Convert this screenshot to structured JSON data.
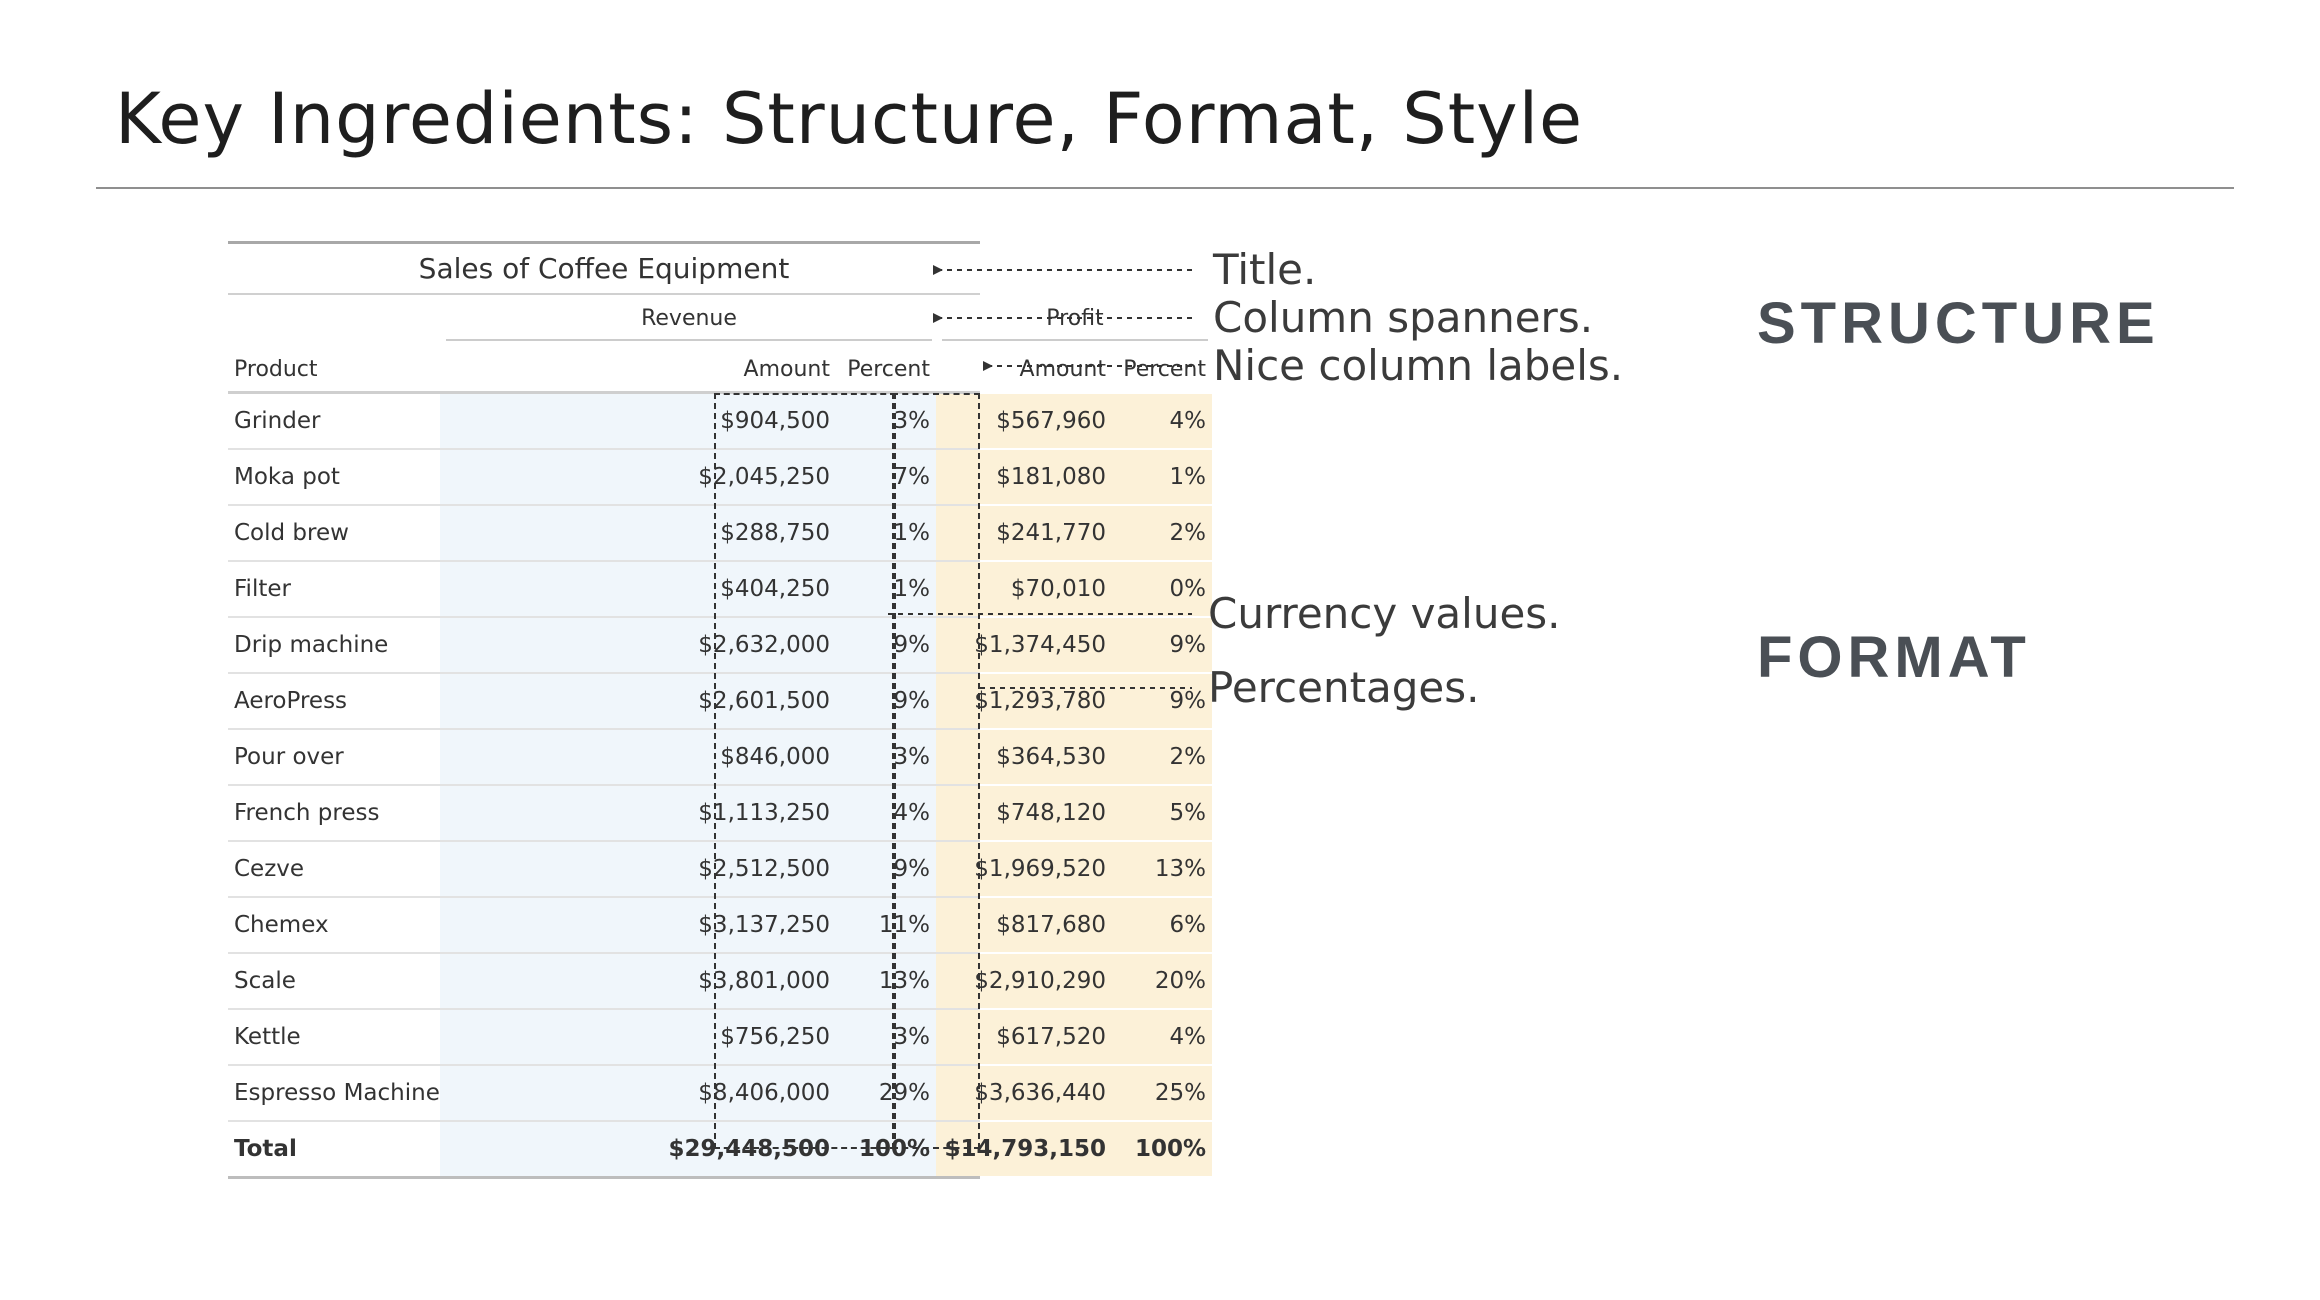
{
  "slide": {
    "title": "Key Ingredients: Structure, Format, Style"
  },
  "table": {
    "title": "Sales of Coffee Equipment",
    "spanners": {
      "revenue": "Revenue",
      "profit": "Profit"
    },
    "labels": {
      "product": "Product",
      "amount": "Amount",
      "percent": "Percent"
    },
    "rows": [
      {
        "product": "Grinder",
        "rev_amount": "$904,500",
        "rev_pct": "3%",
        "prof_amount": "$567,960",
        "prof_pct": "4%"
      },
      {
        "product": "Moka pot",
        "rev_amount": "$2,045,250",
        "rev_pct": "7%",
        "prof_amount": "$181,080",
        "prof_pct": "1%"
      },
      {
        "product": "Cold brew",
        "rev_amount": "$288,750",
        "rev_pct": "1%",
        "prof_amount": "$241,770",
        "prof_pct": "2%"
      },
      {
        "product": "Filter",
        "rev_amount": "$404,250",
        "rev_pct": "1%",
        "prof_amount": "$70,010",
        "prof_pct": "0%"
      },
      {
        "product": "Drip machine",
        "rev_amount": "$2,632,000",
        "rev_pct": "9%",
        "prof_amount": "$1,374,450",
        "prof_pct": "9%"
      },
      {
        "product": "AeroPress",
        "rev_amount": "$2,601,500",
        "rev_pct": "9%",
        "prof_amount": "$1,293,780",
        "prof_pct": "9%"
      },
      {
        "product": "Pour over",
        "rev_amount": "$846,000",
        "rev_pct": "3%",
        "prof_amount": "$364,530",
        "prof_pct": "2%"
      },
      {
        "product": "French press",
        "rev_amount": "$1,113,250",
        "rev_pct": "4%",
        "prof_amount": "$748,120",
        "prof_pct": "5%"
      },
      {
        "product": "Cezve",
        "rev_amount": "$2,512,500",
        "rev_pct": "9%",
        "prof_amount": "$1,969,520",
        "prof_pct": "13%"
      },
      {
        "product": "Chemex",
        "rev_amount": "$3,137,250",
        "rev_pct": "11%",
        "prof_amount": "$817,680",
        "prof_pct": "6%"
      },
      {
        "product": "Scale",
        "rev_amount": "$3,801,000",
        "rev_pct": "13%",
        "prof_amount": "$2,910,290",
        "prof_pct": "20%"
      },
      {
        "product": "Kettle",
        "rev_amount": "$756,250",
        "rev_pct": "3%",
        "prof_amount": "$617,520",
        "prof_pct": "4%"
      },
      {
        "product": "Espresso Machine",
        "rev_amount": "$8,406,000",
        "rev_pct": "29%",
        "prof_amount": "$3,636,440",
        "prof_pct": "25%"
      }
    ],
    "total": {
      "product": "Total",
      "rev_amount": "$29,448,500",
      "rev_pct": "100%",
      "prof_amount": "$14,793,150",
      "prof_pct": "100%"
    }
  },
  "annotations": {
    "title": "Title.",
    "spanners": "Column spanners.",
    "labels": "Nice column labels.",
    "currency": "Currency values.",
    "percent": "Percentages."
  },
  "sections": {
    "structure": "STRUCTURE",
    "format": "FORMAT"
  },
  "colors": {
    "revenue_fill": "#f0f6fb",
    "profit_fill": "#fcf1d8",
    "section_label": "#4a4f55"
  }
}
